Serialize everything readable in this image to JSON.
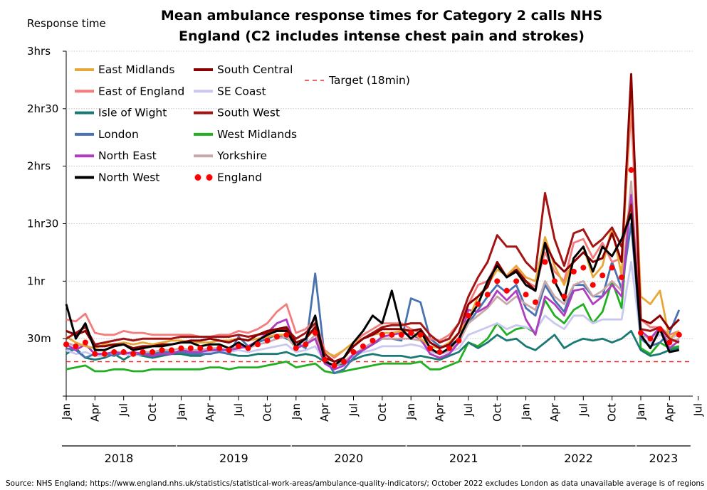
{
  "chart_data": {
    "type": "line",
    "title_lines": [
      "Mean ambulance response times for Category 2 calls NHS",
      "England (C2 includes intense chest pain and strokes)"
    ],
    "ylabel": "Response time",
    "y_unit": "minutes",
    "ylim": [
      0,
      180
    ],
    "y_ticks": [
      {
        "value": 180,
        "label": "3hrs"
      },
      {
        "value": 150,
        "label": "2hr30"
      },
      {
        "value": 120,
        "label": "2hrs"
      },
      {
        "value": 90,
        "label": "1hr30"
      },
      {
        "value": 60,
        "label": "1hr"
      },
      {
        "value": 30,
        "label": "30m"
      }
    ],
    "x_tick_labels": [
      "Jan",
      "Apr",
      "Jul",
      "Oct",
      "Jan",
      "Apr",
      "Jul",
      "Oct",
      "Jan",
      "Apr",
      "Jul",
      "Oct",
      "Jan",
      "Apr",
      "Jul",
      "Oct",
      "Jan",
      "Apr",
      "Jul",
      "Oct",
      "Jan",
      "Apr",
      "Jul"
    ],
    "years": [
      "2018",
      "2019",
      "2020",
      "2021",
      "2022",
      "2023"
    ],
    "months": [
      "2018-01",
      "2018-02",
      "2018-03",
      "2018-04",
      "2018-05",
      "2018-06",
      "2018-07",
      "2018-08",
      "2018-09",
      "2018-10",
      "2018-11",
      "2018-12",
      "2019-01",
      "2019-02",
      "2019-03",
      "2019-04",
      "2019-05",
      "2019-06",
      "2019-07",
      "2019-08",
      "2019-09",
      "2019-10",
      "2019-11",
      "2019-12",
      "2020-01",
      "2020-02",
      "2020-03",
      "2020-04",
      "2020-05",
      "2020-06",
      "2020-07",
      "2020-08",
      "2020-09",
      "2020-10",
      "2020-11",
      "2020-12",
      "2021-01",
      "2021-02",
      "2021-03",
      "2021-04",
      "2021-05",
      "2021-06",
      "2021-07",
      "2021-08",
      "2021-09",
      "2021-10",
      "2021-11",
      "2021-12",
      "2022-01",
      "2022-02",
      "2022-03",
      "2022-04",
      "2022-05",
      "2022-06",
      "2022-07",
      "2022-08",
      "2022-09",
      "2022-10",
      "2022-11",
      "2022-12",
      "2023-01",
      "2023-02",
      "2023-03",
      "2023-04",
      "2023-05"
    ],
    "target": {
      "name": "Target (18min)",
      "value": 18
    },
    "series": [
      {
        "name": "East Midlands",
        "color": "#e8a838",
        "values": [
          31,
          28,
          26,
          25,
          27,
          27,
          28,
          27,
          28,
          27,
          28,
          29,
          29,
          28,
          28,
          28,
          29,
          29,
          30,
          29,
          30,
          31,
          32,
          32,
          28,
          30,
          35,
          23,
          21,
          24,
          28,
          30,
          32,
          33,
          33,
          34,
          34,
          30,
          26,
          25,
          28,
          33,
          40,
          52,
          58,
          66,
          63,
          68,
          62,
          60,
          83,
          68,
          58,
          72,
          78,
          62,
          68,
          88,
          63,
          162,
          52,
          48,
          55,
          30,
          34
        ]
      },
      {
        "name": "East of England",
        "color": "#f47c7c",
        "values": [
          40,
          39,
          43,
          33,
          32,
          32,
          34,
          33,
          33,
          32,
          32,
          32,
          32,
          32,
          31,
          31,
          32,
          32,
          34,
          33,
          35,
          38,
          44,
          48,
          33,
          35,
          40,
          24,
          20,
          24,
          28,
          32,
          35,
          38,
          38,
          38,
          35,
          33,
          30,
          29,
          32,
          38,
          48,
          58,
          60,
          70,
          62,
          68,
          60,
          57,
          75,
          65,
          60,
          80,
          82,
          72,
          80,
          70,
          72,
          150,
          40,
          36,
          36,
          32,
          34
        ]
      },
      {
        "name": "Isle of Wight",
        "color": "#1a7a73",
        "values": [
          22,
          25,
          20,
          19,
          20,
          22,
          19,
          22,
          21,
          20,
          21,
          22,
          22,
          21,
          21,
          23,
          23,
          22,
          21,
          21,
          22,
          22,
          22,
          23,
          21,
          22,
          21,
          18,
          16,
          17,
          19,
          21,
          22,
          21,
          21,
          21,
          20,
          21,
          20,
          19,
          21,
          23,
          28,
          25,
          28,
          32,
          29,
          30,
          26,
          24,
          28,
          32,
          25,
          28,
          30,
          29,
          30,
          28,
          30,
          34,
          24,
          21,
          22,
          24,
          25
        ]
      },
      {
        "name": "London",
        "color": "#4a72b0",
        "values": [
          25,
          24,
          20,
          22,
          22,
          21,
          23,
          22,
          22,
          22,
          23,
          23,
          23,
          22,
          22,
          22,
          23,
          22,
          31,
          26,
          28,
          30,
          32,
          30,
          28,
          25,
          64,
          20,
          12,
          14,
          20,
          24,
          27,
          30,
          30,
          29,
          51,
          49,
          30,
          26,
          26,
          30,
          38,
          45,
          52,
          58,
          54,
          58,
          46,
          42,
          58,
          50,
          44,
          58,
          58,
          52,
          52,
          70,
          56,
          90,
          30,
          26,
          28,
          33,
          45
        ]
      },
      {
        "name": "North East",
        "color": "#b03cc0",
        "values": [
          27,
          24,
          27,
          22,
          22,
          23,
          22,
          23,
          22,
          21,
          22,
          22,
          24,
          23,
          23,
          24,
          24,
          24,
          25,
          26,
          29,
          33,
          38,
          40,
          25,
          27,
          30,
          17,
          14,
          16,
          22,
          24,
          27,
          31,
          32,
          33,
          32,
          30,
          22,
          20,
          22,
          28,
          45,
          44,
          47,
          55,
          50,
          55,
          40,
          32,
          52,
          48,
          42,
          55,
          56,
          48,
          52,
          58,
          52,
          105,
          34,
          30,
          36,
          25,
          29
        ]
      },
      {
        "name": "North West",
        "color": "#000000",
        "values": [
          48,
          30,
          38,
          24,
          24,
          26,
          27,
          24,
          25,
          26,
          26,
          27,
          28,
          28,
          26,
          27,
          27,
          25,
          28,
          25,
          29,
          32,
          34,
          34,
          26,
          30,
          42,
          18,
          16,
          20,
          28,
          34,
          42,
          38,
          55,
          35,
          30,
          34,
          25,
          22,
          25,
          30,
          40,
          48,
          60,
          68,
          62,
          65,
          58,
          55,
          80,
          60,
          50,
          72,
          78,
          65,
          78,
          73,
          82,
          95,
          32,
          25,
          35,
          23,
          24
        ]
      },
      {
        "name": "South Central",
        "color": "#8b0000",
        "values": [
          34,
          32,
          34,
          26,
          26,
          27,
          27,
          25,
          26,
          26,
          27,
          27,
          28,
          29,
          29,
          30,
          29,
          28,
          30,
          29,
          32,
          34,
          35,
          36,
          28,
          30,
          36,
          20,
          18,
          20,
          26,
          30,
          32,
          35,
          35,
          35,
          34,
          35,
          28,
          25,
          27,
          33,
          48,
          52,
          57,
          70,
          62,
          66,
          60,
          55,
          80,
          70,
          65,
          70,
          75,
          70,
          72,
          85,
          70,
          168,
          40,
          38,
          42,
          35,
          40
        ]
      },
      {
        "name": "SE Coast",
        "color": "#c8c8f0",
        "values": [
          24,
          22,
          23,
          21,
          21,
          22,
          22,
          21,
          22,
          22,
          23,
          23,
          23,
          23,
          23,
          23,
          23,
          23,
          24,
          23,
          24,
          25,
          26,
          27,
          23,
          24,
          26,
          18,
          16,
          18,
          21,
          23,
          24,
          26,
          26,
          26,
          27,
          26,
          23,
          22,
          23,
          25,
          32,
          34,
          36,
          38,
          35,
          37,
          36,
          34,
          42,
          38,
          35,
          42,
          42,
          38,
          40,
          40,
          40,
          70,
          30,
          28,
          32,
          30,
          32
        ]
      },
      {
        "name": "South West",
        "color": "#a31515",
        "values": [
          30,
          33,
          36,
          27,
          28,
          29,
          30,
          29,
          30,
          30,
          30,
          30,
          31,
          31,
          31,
          31,
          31,
          31,
          32,
          31,
          32,
          33,
          34,
          35,
          30,
          33,
          38,
          22,
          18,
          20,
          26,
          30,
          33,
          36,
          37,
          37,
          38,
          38,
          32,
          28,
          30,
          38,
          52,
          62,
          70,
          84,
          78,
          78,
          70,
          65,
          106,
          82,
          68,
          85,
          87,
          78,
          82,
          88,
          78,
          100,
          35,
          34,
          36,
          30,
          28
        ]
      },
      {
        "name": "West Midlands",
        "color": "#22b022",
        "values": [
          14,
          15,
          16,
          13,
          13,
          14,
          14,
          13,
          13,
          14,
          14,
          14,
          14,
          14,
          14,
          15,
          15,
          14,
          15,
          15,
          15,
          16,
          17,
          18,
          15,
          16,
          17,
          13,
          12,
          13,
          14,
          15,
          16,
          17,
          17,
          17,
          17,
          18,
          14,
          14,
          16,
          18,
          28,
          26,
          30,
          38,
          32,
          35,
          36,
          33,
          50,
          42,
          38,
          45,
          48,
          38,
          44,
          60,
          46,
          110,
          25,
          22,
          28,
          25,
          26
        ]
      },
      {
        "name": "Yorkshire",
        "color": "#c8a8a8",
        "values": [
          28,
          26,
          27,
          22,
          22,
          23,
          23,
          22,
          23,
          23,
          24,
          24,
          25,
          24,
          24,
          25,
          25,
          24,
          26,
          25,
          27,
          28,
          30,
          31,
          25,
          27,
          32,
          18,
          16,
          18,
          22,
          25,
          28,
          30,
          30,
          30,
          30,
          29,
          24,
          22,
          24,
          28,
          38,
          42,
          46,
          52,
          48,
          52,
          48,
          45,
          60,
          52,
          48,
          58,
          60,
          52,
          55,
          60,
          55,
          112,
          32,
          30,
          34,
          28,
          30
        ]
      },
      {
        "name": "England",
        "color": "#ff0000",
        "values": [
          27,
          26,
          28,
          22,
          22,
          23,
          23,
          22,
          23,
          23,
          24,
          24,
          25,
          25,
          25,
          25,
          25,
          24,
          26,
          25,
          27,
          29,
          31,
          32,
          25,
          27,
          33,
          19,
          16,
          18,
          23,
          26,
          29,
          32,
          32,
          32,
          33,
          32,
          25,
          23,
          25,
          29,
          42,
          48,
          53,
          60,
          55,
          60,
          53,
          49,
          70,
          60,
          52,
          65,
          67,
          58,
          63,
          67,
          62,
          118,
          33,
          30,
          35,
          28,
          32
        ]
      }
    ],
    "legend_order": [
      "East Midlands",
      "South Central",
      "East of England",
      "SE Coast",
      "Isle of Wight",
      "South West",
      "London",
      "West Midlands",
      "North East",
      "Yorkshire",
      "North West",
      "England"
    ],
    "source": "Source: NHS England; https://www.england.nhs.uk/statistics/statistical-work-areas/ambulance-quality-indicators/; October 2022 excludes London as data unavailable average is of regions except London"
  }
}
